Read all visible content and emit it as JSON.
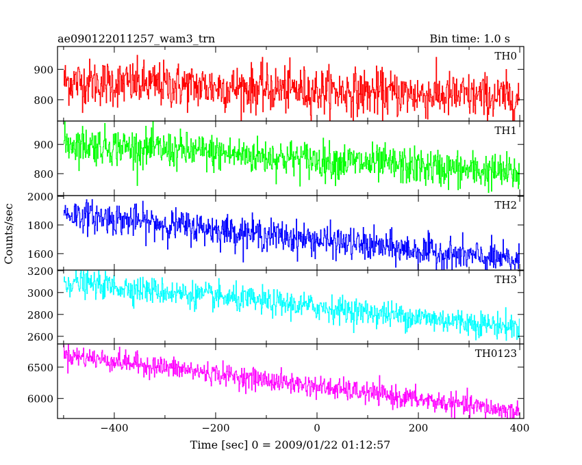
{
  "header": {
    "left": "ae090122011257_wam3_trn",
    "right": "Bin time: 1.0 s"
  },
  "chart_data": {
    "type": "line",
    "xlabel": "Time [sec] 0 = 2009/01/22 01:12:57",
    "ylabel": "Counts/sec",
    "xlim": [
      -512,
      408
    ],
    "xticks": [
      -400,
      -200,
      0,
      200,
      400
    ],
    "x_range": [
      -500,
      400
    ],
    "bin_time": 1.0,
    "panels": [
      {
        "name": "TH0",
        "color": "#ff0000",
        "ylim": [
          730,
          975
        ],
        "yticks": [
          800,
          900
        ],
        "trend_start": 860,
        "trend_end": 805,
        "noise_sd": 38
      },
      {
        "name": "TH1",
        "color": "#00ff00",
        "ylim": [
          725,
          980
        ],
        "yticks": [
          800,
          900
        ],
        "trend_start": 905,
        "trend_end": 800,
        "noise_sd": 32
      },
      {
        "name": "TH2",
        "color": "#0000ff",
        "ylim": [
          1485,
          2005
        ],
        "yticks": [
          1600,
          1800,
          2000
        ],
        "trend_start": 1880,
        "trend_end": 1545,
        "noise_sd": 55
      },
      {
        "name": "TH3",
        "color": "#00ffff",
        "ylim": [
          2530,
          3205
        ],
        "yticks": [
          2600,
          2800,
          3000,
          3200
        ],
        "trend_start": 3100,
        "trend_end": 2680,
        "noise_sd": 60
      },
      {
        "name": "TH0123",
        "color": "#ff00ff",
        "ylim": [
          5680,
          6870
        ],
        "yticks": [
          6000,
          6500
        ],
        "trend_start": 6700,
        "trend_end": 5780,
        "noise_sd": 85
      }
    ]
  }
}
